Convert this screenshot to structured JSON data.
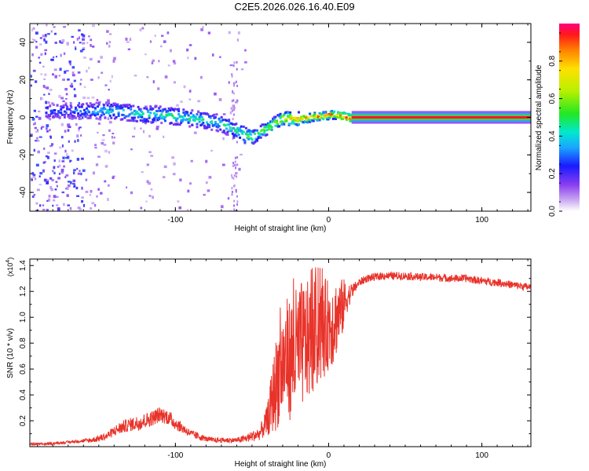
{
  "title": "C2E5.2026.026.16.40.E09",
  "chart_data": [
    {
      "type": "heatmap",
      "xlabel": "Height of straight line (km)",
      "ylabel": "Frequency (Hz)",
      "xlim": [
        -195,
        132
      ],
      "ylim": [
        -50,
        50
      ],
      "x_ticks": [
        -100,
        0,
        100
      ],
      "x_tick_labels": [
        "-100",
        "0",
        "100"
      ],
      "y_ticks": [
        -40,
        -20,
        0,
        20,
        40
      ],
      "y_tick_labels": [
        "-40",
        "-20",
        "0",
        "20",
        "40"
      ],
      "colorbar": {
        "label": "Normalized spectral amplitude",
        "range": [
          0,
          1
        ],
        "ticks": [
          0,
          0.2,
          0.4,
          0.6,
          0.8
        ],
        "tick_labels": [
          "0.0",
          "0.2",
          "0.4",
          "0.6",
          "0.8"
        ]
      },
      "ridge_trace": {
        "description": "Frequency of the strongest spectral ridge versus height",
        "x": [
          -175,
          -160,
          -150,
          -140,
          -130,
          -120,
          -110,
          -100,
          -90,
          -80,
          -70,
          -62,
          -55,
          -50,
          -45,
          -40,
          -35,
          -30,
          -25,
          -20,
          -15,
          -10,
          -5,
          0,
          5,
          10,
          15,
          130
        ],
        "y": [
          4,
          4,
          4,
          4,
          3,
          2,
          2,
          1,
          0,
          -1,
          -3,
          -6,
          -9,
          -10,
          -7,
          -5,
          -2,
          0,
          0,
          0,
          0,
          1,
          1,
          2,
          2,
          1,
          0,
          0
        ],
        "amplitude": [
          0.3,
          0.35,
          0.4,
          0.45,
          0.45,
          0.45,
          0.5,
          0.5,
          0.5,
          0.45,
          0.45,
          0.5,
          0.55,
          0.6,
          0.6,
          0.65,
          0.7,
          0.8,
          0.85,
          0.9,
          0.9,
          0.9,
          0.9,
          0.95,
          0.95,
          1.0,
          1.0,
          1.0
        ]
      }
    },
    {
      "type": "line",
      "xlabel": "Height of straight line (km)",
      "ylabel": "SNR (10 * v/v)",
      "y_scale_label": "(x10",
      "y_scale_exponent": "4",
      "xlim": [
        -195,
        132
      ],
      "ylim": [
        0,
        1.45
      ],
      "x_ticks": [
        -100,
        0,
        100
      ],
      "x_tick_labels": [
        "-100",
        "0",
        "100"
      ],
      "y_ticks": [
        0.2,
        0.4,
        0.6,
        0.8,
        1.0,
        1.2,
        1.4
      ],
      "y_tick_labels": [
        "0.2",
        "0.4",
        "0.6",
        "0.8",
        "1.0",
        "1.2",
        "1.4"
      ],
      "series": [
        {
          "name": "SNR",
          "color": "#e8332a",
          "x": [
            -195,
            -185,
            -175,
            -165,
            -155,
            -145,
            -140,
            -135,
            -130,
            -125,
            -120,
            -115,
            -110,
            -105,
            -100,
            -95,
            -90,
            -85,
            -80,
            -75,
            -70,
            -65,
            -60,
            -55,
            -50,
            -45,
            -40,
            -37,
            -35,
            -33,
            -30,
            -28,
            -25,
            -22,
            -20,
            -18,
            -15,
            -12,
            -10,
            -7,
            -5,
            -2,
            0,
            3,
            5,
            8,
            10,
            12,
            15,
            18,
            20,
            25,
            30,
            35,
            40,
            50,
            60,
            70,
            80,
            90,
            100,
            110,
            120,
            132
          ],
          "y": [
            0.02,
            0.02,
            0.03,
            0.04,
            0.05,
            0.08,
            0.12,
            0.15,
            0.17,
            0.18,
            0.2,
            0.22,
            0.25,
            0.23,
            0.18,
            0.14,
            0.1,
            0.08,
            0.06,
            0.05,
            0.05,
            0.05,
            0.05,
            0.06,
            0.08,
            0.1,
            0.2,
            0.35,
            0.45,
            0.55,
            0.62,
            0.7,
            0.68,
            0.72,
            0.75,
            0.78,
            0.8,
            0.82,
            0.85,
            0.88,
            0.9,
            0.92,
            0.95,
            0.97,
            1.0,
            1.05,
            1.1,
            1.15,
            1.2,
            1.24,
            1.27,
            1.3,
            1.31,
            1.32,
            1.32,
            1.32,
            1.31,
            1.31,
            1.3,
            1.3,
            1.28,
            1.27,
            1.25,
            1.23
          ],
          "noise_amplitude": [
            0.01,
            0.01,
            0.01,
            0.01,
            0.02,
            0.03,
            0.04,
            0.05,
            0.05,
            0.06,
            0.06,
            0.06,
            0.06,
            0.06,
            0.05,
            0.04,
            0.03,
            0.03,
            0.02,
            0.02,
            0.02,
            0.02,
            0.02,
            0.03,
            0.04,
            0.05,
            0.12,
            0.25,
            0.35,
            0.4,
            0.42,
            0.45,
            0.48,
            0.5,
            0.5,
            0.5,
            0.48,
            0.45,
            0.45,
            0.42,
            0.4,
            0.38,
            0.35,
            0.35,
            0.3,
            0.25,
            0.2,
            0.12,
            0.06,
            0.04,
            0.03,
            0.03,
            0.03,
            0.03,
            0.03,
            0.03,
            0.03,
            0.03,
            0.03,
            0.03,
            0.03,
            0.03,
            0.03,
            0.03
          ]
        }
      ]
    }
  ]
}
